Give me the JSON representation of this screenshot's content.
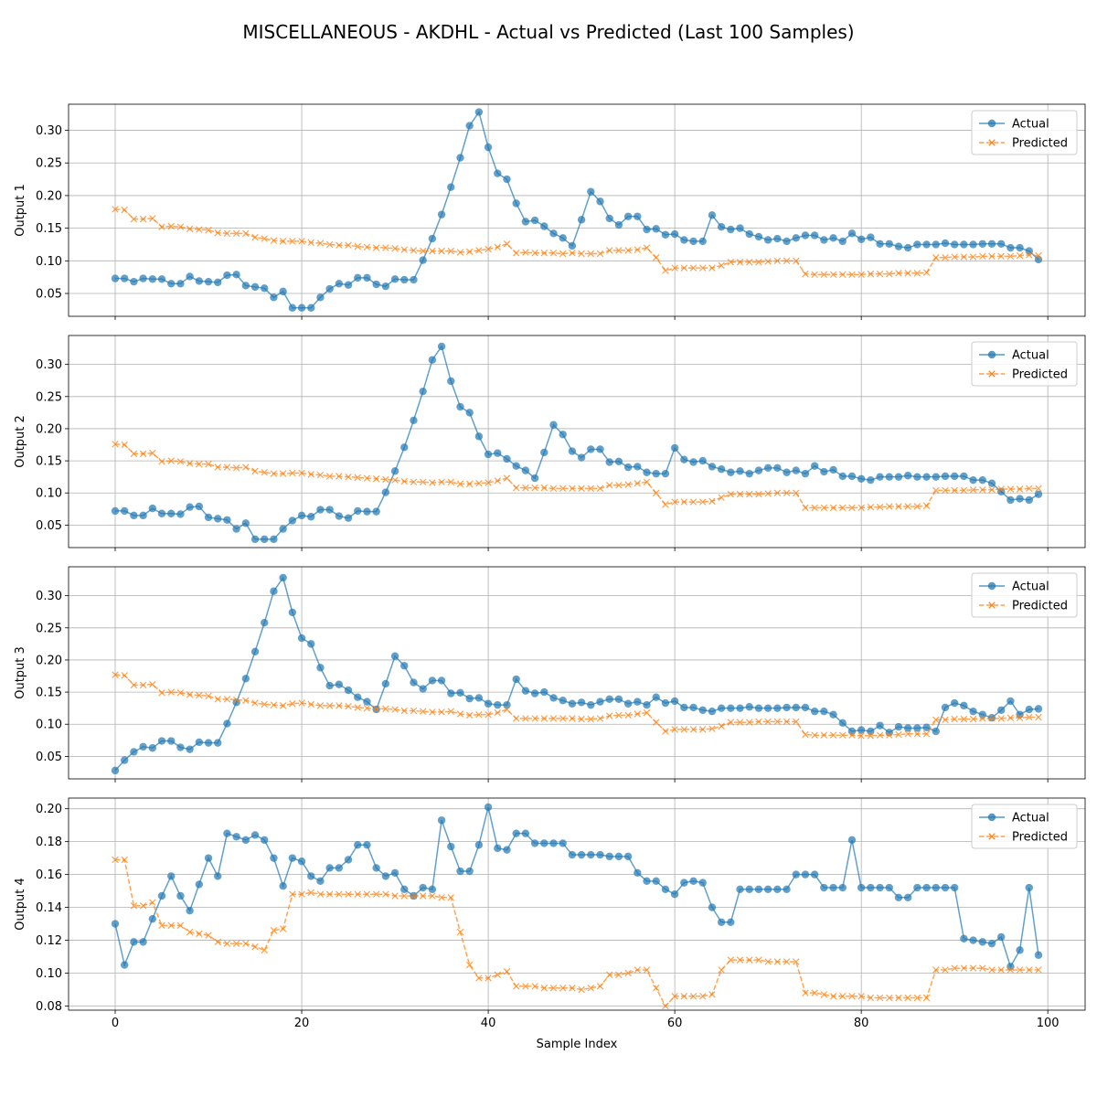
{
  "figure_title": "MISCELLANEOUS - AKDHL - Actual vs Predicted (Last 100 Samples)",
  "xlabel": "Sample Index",
  "colors": {
    "actual": "#1f77b4",
    "predicted": "#ff7f0e",
    "grid": "#b0b0b0",
    "axis": "#000000"
  },
  "chart_data": [
    {
      "type": "line",
      "ylabel": "Output 1",
      "xlim": [
        -5,
        104
      ],
      "ylim": [
        0.015,
        0.34
      ],
      "yticks": [
        0.05,
        0.1,
        0.15,
        0.2,
        0.25,
        0.3
      ],
      "ytick_labels": [
        "0.05",
        "0.10",
        "0.15",
        "0.20",
        "0.25",
        "0.30"
      ],
      "xticks": [
        0,
        20,
        40,
        60,
        80,
        100
      ],
      "xtick_labels": [],
      "grid": true,
      "legend": "top-right",
      "series": [
        {
          "name": "Actual",
          "marker": "o",
          "values": [
            0.073,
            0.073,
            0.068,
            0.073,
            0.072,
            0.072,
            0.065,
            0.065,
            0.076,
            0.069,
            0.068,
            0.067,
            0.078,
            0.079,
            0.062,
            0.06,
            0.058,
            0.044,
            0.053,
            0.028,
            0.028,
            0.028,
            0.044,
            0.057,
            0.065,
            0.063,
            0.074,
            0.074,
            0.064,
            0.061,
            0.072,
            0.071,
            0.071,
            0.101,
            0.134,
            0.171,
            0.213,
            0.258,
            0.307,
            0.328,
            0.274,
            0.234,
            0.225,
            0.188,
            0.16,
            0.162,
            0.153,
            0.142,
            0.135,
            0.123,
            0.163,
            0.206,
            0.191,
            0.165,
            0.155,
            0.168,
            0.168,
            0.148,
            0.149,
            0.14,
            0.141,
            0.132,
            0.13,
            0.13,
            0.17,
            0.152,
            0.148,
            0.15,
            0.141,
            0.137,
            0.132,
            0.134,
            0.13,
            0.135,
            0.139,
            0.139,
            0.132,
            0.135,
            0.13,
            0.142,
            0.133,
            0.136,
            0.126,
            0.126,
            0.122,
            0.12,
            0.125,
            0.125,
            0.125,
            0.127,
            0.125,
            0.125,
            0.125,
            0.126,
            0.126,
            0.126,
            0.12,
            0.12,
            0.115,
            0.102
          ]
        },
        {
          "name": "Predicted",
          "marker": "x",
          "values": [
            0.179,
            0.178,
            0.164,
            0.164,
            0.165,
            0.152,
            0.153,
            0.152,
            0.149,
            0.148,
            0.147,
            0.143,
            0.142,
            0.142,
            0.142,
            0.136,
            0.134,
            0.131,
            0.13,
            0.13,
            0.13,
            0.128,
            0.127,
            0.125,
            0.124,
            0.124,
            0.122,
            0.121,
            0.12,
            0.12,
            0.119,
            0.117,
            0.116,
            0.115,
            0.115,
            0.115,
            0.115,
            0.113,
            0.114,
            0.116,
            0.118,
            0.121,
            0.126,
            0.112,
            0.113,
            0.112,
            0.112,
            0.112,
            0.111,
            0.112,
            0.111,
            0.111,
            0.111,
            0.116,
            0.116,
            0.116,
            0.117,
            0.12,
            0.105,
            0.085,
            0.089,
            0.089,
            0.089,
            0.089,
            0.089,
            0.093,
            0.098,
            0.098,
            0.098,
            0.098,
            0.099,
            0.1,
            0.1,
            0.1,
            0.08,
            0.079,
            0.079,
            0.079,
            0.079,
            0.079,
            0.079,
            0.08,
            0.08,
            0.08,
            0.081,
            0.081,
            0.081,
            0.082,
            0.105,
            0.105,
            0.106,
            0.106,
            0.106,
            0.107,
            0.107,
            0.107,
            0.107,
            0.108,
            0.109,
            0.108
          ]
        }
      ]
    },
    {
      "type": "line",
      "ylabel": "Output 2",
      "xlim": [
        -5,
        104
      ],
      "ylim": [
        0.015,
        0.345
      ],
      "yticks": [
        0.05,
        0.1,
        0.15,
        0.2,
        0.25,
        0.3
      ],
      "ytick_labels": [
        "0.05",
        "0.10",
        "0.15",
        "0.20",
        "0.25",
        "0.30"
      ],
      "xticks": [
        0,
        20,
        40,
        60,
        80,
        100
      ],
      "xtick_labels": [],
      "grid": true,
      "legend": "top-right",
      "series": [
        {
          "name": "Actual",
          "marker": "o",
          "values": [
            0.072,
            0.072,
            0.065,
            0.065,
            0.076,
            0.068,
            0.068,
            0.067,
            0.078,
            0.079,
            0.062,
            0.06,
            0.058,
            0.044,
            0.053,
            0.028,
            0.028,
            0.028,
            0.044,
            0.057,
            0.065,
            0.063,
            0.074,
            0.074,
            0.064,
            0.061,
            0.072,
            0.071,
            0.071,
            0.101,
            0.134,
            0.171,
            0.213,
            0.258,
            0.307,
            0.328,
            0.274,
            0.234,
            0.225,
            0.188,
            0.16,
            0.162,
            0.153,
            0.142,
            0.135,
            0.123,
            0.163,
            0.206,
            0.191,
            0.165,
            0.155,
            0.168,
            0.168,
            0.148,
            0.149,
            0.14,
            0.141,
            0.132,
            0.13,
            0.13,
            0.17,
            0.152,
            0.148,
            0.15,
            0.141,
            0.137,
            0.132,
            0.134,
            0.13,
            0.135,
            0.139,
            0.139,
            0.132,
            0.135,
            0.13,
            0.142,
            0.133,
            0.136,
            0.126,
            0.126,
            0.122,
            0.12,
            0.125,
            0.125,
            0.125,
            0.127,
            0.125,
            0.125,
            0.125,
            0.126,
            0.126,
            0.126,
            0.12,
            0.12,
            0.115,
            0.102,
            0.089,
            0.091,
            0.089,
            0.098
          ]
        },
        {
          "name": "Predicted",
          "marker": "x",
          "values": [
            0.176,
            0.175,
            0.161,
            0.161,
            0.162,
            0.149,
            0.15,
            0.149,
            0.146,
            0.145,
            0.145,
            0.14,
            0.14,
            0.139,
            0.14,
            0.134,
            0.132,
            0.13,
            0.13,
            0.131,
            0.131,
            0.129,
            0.128,
            0.126,
            0.126,
            0.125,
            0.124,
            0.123,
            0.122,
            0.121,
            0.12,
            0.118,
            0.117,
            0.117,
            0.116,
            0.117,
            0.117,
            0.114,
            0.114,
            0.115,
            0.116,
            0.119,
            0.123,
            0.108,
            0.108,
            0.108,
            0.108,
            0.107,
            0.107,
            0.107,
            0.107,
            0.107,
            0.107,
            0.112,
            0.112,
            0.113,
            0.115,
            0.117,
            0.1,
            0.082,
            0.086,
            0.086,
            0.086,
            0.086,
            0.087,
            0.093,
            0.098,
            0.098,
            0.098,
            0.098,
            0.099,
            0.1,
            0.1,
            0.1,
            0.077,
            0.077,
            0.077,
            0.077,
            0.077,
            0.077,
            0.077,
            0.078,
            0.078,
            0.079,
            0.079,
            0.079,
            0.079,
            0.08,
            0.104,
            0.104,
            0.104,
            0.104,
            0.105,
            0.105,
            0.105,
            0.106,
            0.106,
            0.106,
            0.107,
            0.107
          ]
        }
      ]
    },
    {
      "type": "line",
      "ylabel": "Output 3",
      "xlim": [
        -5,
        104
      ],
      "ylim": [
        0.015,
        0.345
      ],
      "yticks": [
        0.05,
        0.1,
        0.15,
        0.2,
        0.25,
        0.3
      ],
      "ytick_labels": [
        "0.05",
        "0.10",
        "0.15",
        "0.20",
        "0.25",
        "0.30"
      ],
      "xticks": [
        0,
        20,
        40,
        60,
        80,
        100
      ],
      "xtick_labels": [],
      "grid": true,
      "legend": "top-right",
      "series": [
        {
          "name": "Actual",
          "marker": "o",
          "values": [
            0.028,
            0.044,
            0.057,
            0.065,
            0.063,
            0.074,
            0.074,
            0.064,
            0.061,
            0.072,
            0.071,
            0.071,
            0.101,
            0.134,
            0.171,
            0.213,
            0.258,
            0.307,
            0.328,
            0.274,
            0.234,
            0.225,
            0.188,
            0.16,
            0.162,
            0.153,
            0.142,
            0.135,
            0.123,
            0.163,
            0.206,
            0.191,
            0.165,
            0.155,
            0.168,
            0.168,
            0.148,
            0.149,
            0.14,
            0.141,
            0.132,
            0.13,
            0.13,
            0.17,
            0.152,
            0.148,
            0.15,
            0.141,
            0.137,
            0.132,
            0.134,
            0.13,
            0.135,
            0.139,
            0.139,
            0.132,
            0.135,
            0.13,
            0.142,
            0.133,
            0.136,
            0.126,
            0.126,
            0.122,
            0.12,
            0.125,
            0.125,
            0.125,
            0.127,
            0.125,
            0.125,
            0.125,
            0.126,
            0.126,
            0.126,
            0.12,
            0.12,
            0.115,
            0.102,
            0.089,
            0.091,
            0.089,
            0.098,
            0.087,
            0.096,
            0.094,
            0.094,
            0.095,
            0.089,
            0.126,
            0.133,
            0.129,
            0.12,
            0.115,
            0.11,
            0.122,
            0.136,
            0.115,
            0.123,
            0.124
          ]
        },
        {
          "name": "Predicted",
          "marker": "x",
          "values": [
            0.177,
            0.176,
            0.161,
            0.161,
            0.162,
            0.149,
            0.15,
            0.149,
            0.146,
            0.145,
            0.144,
            0.139,
            0.139,
            0.138,
            0.137,
            0.133,
            0.131,
            0.13,
            0.129,
            0.132,
            0.133,
            0.131,
            0.129,
            0.129,
            0.129,
            0.128,
            0.126,
            0.125,
            0.124,
            0.124,
            0.123,
            0.121,
            0.121,
            0.12,
            0.119,
            0.119,
            0.12,
            0.116,
            0.114,
            0.115,
            0.115,
            0.118,
            0.123,
            0.109,
            0.109,
            0.109,
            0.109,
            0.109,
            0.109,
            0.109,
            0.108,
            0.108,
            0.109,
            0.113,
            0.114,
            0.114,
            0.116,
            0.118,
            0.103,
            0.089,
            0.092,
            0.092,
            0.092,
            0.092,
            0.093,
            0.097,
            0.103,
            0.103,
            0.103,
            0.104,
            0.104,
            0.104,
            0.104,
            0.104,
            0.084,
            0.083,
            0.083,
            0.083,
            0.083,
            0.083,
            0.082,
            0.082,
            0.083,
            0.083,
            0.084,
            0.085,
            0.085,
            0.085,
            0.107,
            0.107,
            0.108,
            0.108,
            0.108,
            0.109,
            0.109,
            0.109,
            0.11,
            0.11,
            0.111,
            0.111
          ]
        }
      ]
    },
    {
      "type": "line",
      "ylabel": "Output 4",
      "xlim": [
        -5,
        104
      ],
      "ylim": [
        0.0775,
        0.2065
      ],
      "yticks": [
        0.08,
        0.1,
        0.12,
        0.14,
        0.16,
        0.18,
        0.2
      ],
      "ytick_labels": [
        "0.08",
        "0.10",
        "0.12",
        "0.14",
        "0.16",
        "0.18",
        "0.20"
      ],
      "xticks": [
        0,
        20,
        40,
        60,
        80,
        100
      ],
      "xtick_labels": [
        "0",
        "20",
        "40",
        "60",
        "80",
        "100"
      ],
      "grid": true,
      "legend": "top-right",
      "series": [
        {
          "name": "Actual",
          "marker": "o",
          "values": [
            0.13,
            0.105,
            0.119,
            0.119,
            0.133,
            0.147,
            0.159,
            0.147,
            0.138,
            0.154,
            0.17,
            0.159,
            0.185,
            0.183,
            0.181,
            0.184,
            0.181,
            0.17,
            0.153,
            0.17,
            0.168,
            0.159,
            0.156,
            0.164,
            0.164,
            0.169,
            0.178,
            0.178,
            0.164,
            0.159,
            0.161,
            0.151,
            0.147,
            0.152,
            0.151,
            0.193,
            0.177,
            0.162,
            0.162,
            0.178,
            0.201,
            0.176,
            0.175,
            0.185,
            0.185,
            0.179,
            0.179,
            0.179,
            0.179,
            0.172,
            0.172,
            0.172,
            0.172,
            0.171,
            0.171,
            0.171,
            0.161,
            0.156,
            0.156,
            0.151,
            0.148,
            0.155,
            0.156,
            0.155,
            0.14,
            0.131,
            0.131,
            0.151,
            0.151,
            0.151,
            0.151,
            0.151,
            0.151,
            0.16,
            0.16,
            0.16,
            0.152,
            0.152,
            0.152,
            0.181,
            0.152,
            0.152,
            0.152,
            0.152,
            0.146,
            0.146,
            0.152,
            0.152,
            0.152,
            0.152,
            0.152,
            0.121,
            0.12,
            0.119,
            0.118,
            0.122,
            0.104,
            0.114,
            0.152,
            0.111
          ]
        },
        {
          "name": "Predicted",
          "marker": "x",
          "values": [
            0.169,
            0.169,
            0.141,
            0.141,
            0.143,
            0.129,
            0.129,
            0.129,
            0.125,
            0.124,
            0.123,
            0.119,
            0.118,
            0.118,
            0.118,
            0.116,
            0.114,
            0.126,
            0.127,
            0.148,
            0.148,
            0.149,
            0.148,
            0.148,
            0.148,
            0.148,
            0.148,
            0.148,
            0.148,
            0.148,
            0.147,
            0.147,
            0.147,
            0.147,
            0.147,
            0.146,
            0.146,
            0.125,
            0.105,
            0.097,
            0.097,
            0.099,
            0.101,
            0.092,
            0.092,
            0.092,
            0.091,
            0.091,
            0.091,
            0.091,
            0.09,
            0.091,
            0.092,
            0.099,
            0.099,
            0.1,
            0.102,
            0.102,
            0.091,
            0.08,
            0.086,
            0.086,
            0.086,
            0.086,
            0.087,
            0.102,
            0.108,
            0.108,
            0.108,
            0.108,
            0.107,
            0.107,
            0.107,
            0.107,
            0.088,
            0.088,
            0.087,
            0.086,
            0.086,
            0.086,
            0.086,
            0.085,
            0.085,
            0.085,
            0.085,
            0.085,
            0.085,
            0.085,
            0.102,
            0.102,
            0.103,
            0.103,
            0.103,
            0.103,
            0.102,
            0.102,
            0.102,
            0.102,
            0.102,
            0.102
          ]
        }
      ]
    }
  ]
}
